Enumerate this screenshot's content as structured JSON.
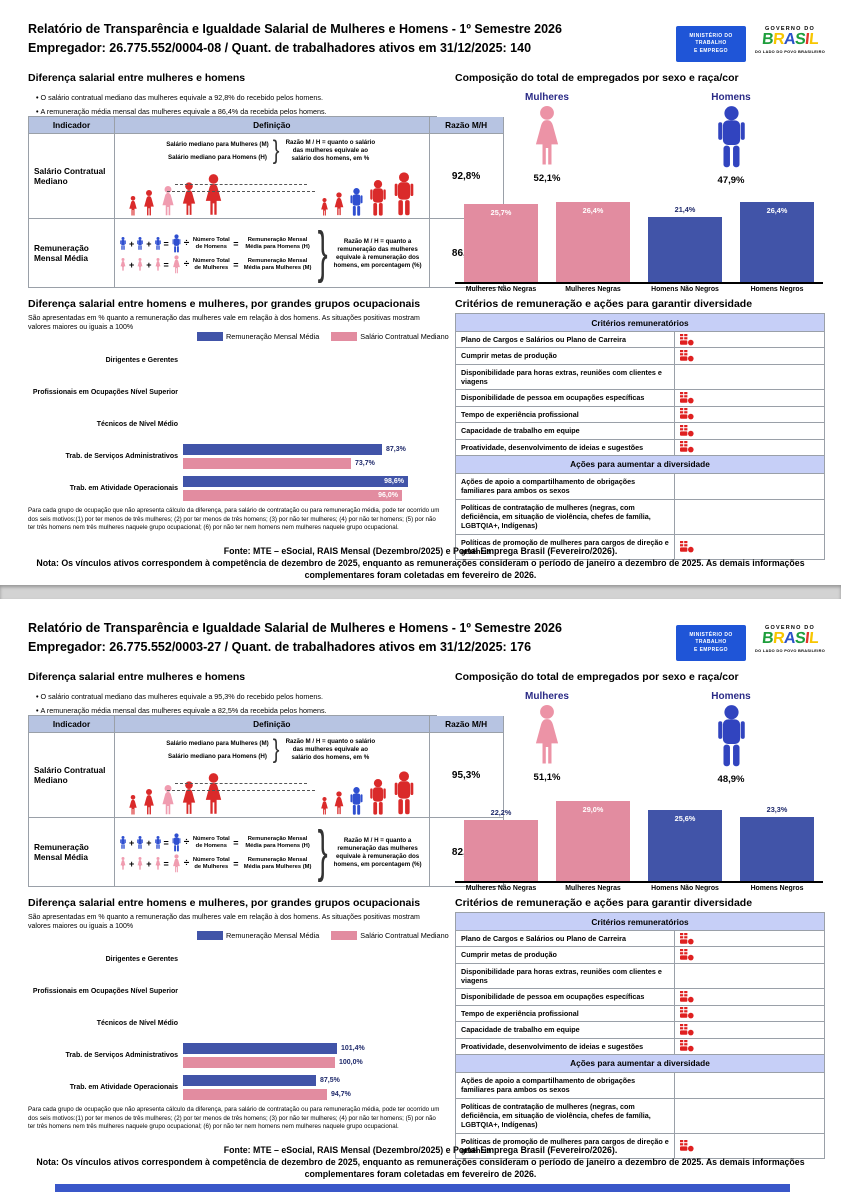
{
  "logos": {
    "ministry_lines": [
      "MINISTÉRIO DO",
      "TRABALHO",
      "E EMPREGO"
    ],
    "gov_top": "GOVERNO DO",
    "gov_name": "BRASIL",
    "gov_sub": "DO LADO DO POVO BRASILEIRO"
  },
  "colors": {
    "pink": "#e28ca0",
    "blue": "#4154a8",
    "figure_pink": "#ec93a6",
    "figure_blue": "#3144bf",
    "diagram_red": "#da2a2a",
    "diagram_pink": "#f09cb0",
    "diagram_blue": "#2f4fd0",
    "red": "#df2020",
    "navy_label": "#1f2a6b",
    "indicator_header_bg": "#b7c4e2",
    "criteria_header_bg": "#c6cff7"
  },
  "shared": {
    "title": "Relatório de Transparência e Igualdade Salarial de Mulheres e Homens - 1º Semestre 2026",
    "diff_heading": "Diferença salarial entre mulheres e homens",
    "comp_heading": "Composição do total de empregados por sexo e raça/cor",
    "occup_heading": "Diferença salarial entre homens e mulheres, por grandes grupos ocupacionais",
    "occup_subtitle": "São apresentadas em % quanto a remuneração das mulheres vale em relação à dos homens. As situações positivas mostram valores maiores ou iguais a 100%",
    "criteria_heading": "Critérios de remuneração e ações para garantir diversidade",
    "legend": {
      "rmm": "Remuneração Mensal Média",
      "scm": "Salário Contratual Mediano"
    },
    "sex_labels": {
      "women": "Mulheres",
      "men": "Homens"
    },
    "indicator_table": {
      "headers": [
        "Indicador",
        "Definição",
        "Razão M/H"
      ],
      "row1_label": "Salário Contratual Mediano",
      "row2_label": "Remuneração Mensal Média",
      "def1": {
        "line_women": "Salário mediano para Mulheres (M)",
        "line_men": "Salário mediano para Homens (H)",
        "note": "Razão M / H = quanto o salário das mulheres equivale ao salário dos homens, em %"
      },
      "def2": {
        "num_men": "Número Total de Homens",
        "rem_men": "Remuneração Mensal Média para Homens (H)",
        "num_women": "Número Total de Mulheres",
        "rem_women": "Remuneração Mensal Média para Mulheres (M)",
        "note": "Razão M / H = quanto a remuneração das mulheres equivale à remuneração dos homens, em porcentagem (%)"
      }
    },
    "race_categories": [
      "Mulheres Não Negras",
      "Mulheres Negras",
      "Homens Não Negros",
      "Homens Negros"
    ],
    "occup_groups": [
      "Dirigentes e Gerentes",
      "Profissionais em Ocupações Nível Superior",
      "Técnicos de Nível Médio",
      "Trab. de Serviços Administrativos",
      "Trab. em Atividade Operacionais"
    ],
    "occup_footnote": "Para cada grupo de ocupação que não apresenta cálculo da diferença, para salário de contratação ou para remuneração média, pode ter ocorrido um dos seis motivos:(1) por ter menos de três mulheres; (2) por ter menos de três homens; (3) por não ter mulheres; (4) por não ter homens; (5) por não ter três homens nem três mulheres naquele grupo ocupacional; (6) por não ter nem homens nem mulheres naquele grupo ocupacional.",
    "criteria": {
      "header1": "Critérios remuneratórios",
      "rows1": [
        "Plano de Cargos e Salários ou Plano de Carreira",
        "Cumprir metas de produção",
        "Disponibilidade para horas extras, reuniões com clientes e viagens",
        "Disponibilidade de pessoa em ocupações específicas",
        "Tempo de experiência profissional",
        "Capacidade de trabalho em equipe",
        "Proatividade, desenvolvimento de ideias e sugestões"
      ],
      "header2": "Ações para aumentar a diversidade",
      "rows2": [
        "Ações de apoio a compartilhamento de obrigações familiares para ambos os sexos",
        "Políticas de contratação de mulheres (negras, com deficiência, em situação de violência, chefes de família, LGBTQIA+, Indígenas)",
        "Políticas de promoção de mulheres para cargos de direção e gerência"
      ]
    },
    "footer": {
      "fonte": "Fonte: MTE – eSocial, RAIS Mensal (Dezembro/2025) e Portal Emprega Brasil (Fevereiro/2026).",
      "nota": "Nota: Os vínculos ativos correspondem à competência de dezembro de 2025, enquanto as remunerações consideram o período de janeiro a dezembro de 2025. As demais informações complementares foram coletadas em fevereiro de 2026."
    }
  },
  "pages": [
    {
      "employer_line": "Empregador: 26.775.552/0004-08 / Quant. de trabalhadores ativos em 31/12/2025: 140",
      "bullets": [
        "O salário contratual mediano das mulheres equivale a 92,8% do recebido pelos homens.",
        "A remuneração média mensal das mulheres equivale a 86,4% da recebida pelos homens."
      ],
      "ratios": {
        "scm": "92,8%",
        "rmm": "86,4%"
      },
      "sex_split": {
        "women": "52,1%",
        "men": "47,9%"
      },
      "race_chart": {
        "type": "bar",
        "values": [
          25.7,
          26.4,
          21.4,
          26.4
        ],
        "labels": [
          "25,7%",
          "26,4%",
          "21,4%",
          "26,4%"
        ],
        "label_inside": [
          true,
          true,
          false,
          true
        ]
      },
      "occup_chart": {
        "type": "bar-horizontal",
        "axis_max": 100,
        "rmm": {
          "values": [
            null,
            null,
            null,
            87.3,
            98.6
          ],
          "labels": [
            null,
            null,
            null,
            "87,3%",
            "98,6%"
          ],
          "label_inside": [
            false,
            false,
            false,
            false,
            true
          ]
        },
        "scm": {
          "values": [
            null,
            null,
            null,
            73.7,
            96.0
          ],
          "labels": [
            null,
            null,
            null,
            "73,7%",
            "96,0%"
          ],
          "label_inside": [
            false,
            false,
            false,
            false,
            true
          ]
        }
      },
      "criteria_checks1": [
        true,
        true,
        false,
        true,
        true,
        true,
        true
      ],
      "criteria_checks2": [
        false,
        false,
        true
      ]
    },
    {
      "employer_line": "Empregador: 26.775.552/0003-27 / Quant. de trabalhadores ativos em 31/12/2025: 176",
      "bullets": [
        "O salário contratual mediano das mulheres equivale a 95,3% do recebido pelos homens.",
        "A remuneração média mensal das mulheres equivale a 82,5% da recebida pelos homens."
      ],
      "ratios": {
        "scm": "95,3%",
        "rmm": "82,5%"
      },
      "sex_split": {
        "women": "51,1%",
        "men": "48,9%"
      },
      "race_chart": {
        "type": "bar",
        "values": [
          22.2,
          29.0,
          25.6,
          23.3
        ],
        "labels": [
          "22,2%",
          "29,0%",
          "25,6%",
          "23,3%"
        ],
        "label_inside": [
          false,
          true,
          true,
          false
        ]
      },
      "occup_chart": {
        "type": "bar-horizontal",
        "axis_max": 150,
        "rmm": {
          "values": [
            null,
            null,
            null,
            101.4,
            87.5
          ],
          "labels": [
            null,
            null,
            null,
            "101,4%",
            "87,5%"
          ],
          "label_inside": [
            false,
            false,
            false,
            false,
            false
          ]
        },
        "scm": {
          "values": [
            null,
            null,
            null,
            100.0,
            94.7
          ],
          "labels": [
            null,
            null,
            null,
            "100,0%",
            "94,7%"
          ],
          "label_inside": [
            false,
            false,
            false,
            false,
            false
          ]
        }
      },
      "criteria_checks1": [
        true,
        true,
        false,
        true,
        true,
        true,
        true
      ],
      "criteria_checks2": [
        false,
        false,
        true
      ]
    }
  ]
}
